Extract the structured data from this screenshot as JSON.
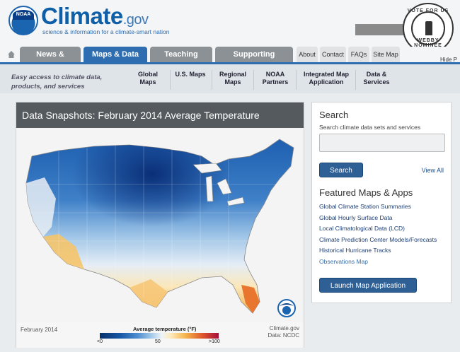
{
  "brand": {
    "logo_text": "NOAA",
    "name": "Climate",
    "tld": ".gov",
    "tagline": "science & information for a climate-smart nation"
  },
  "badge": {
    "top": "VOTE FOR US",
    "bottom": "WEBBY NOMINEE"
  },
  "nav": {
    "tabs": [
      "News & Features",
      "Maps & Data",
      "Teaching Climate",
      "Supporting Decisions"
    ],
    "active_tab": "Maps & Data",
    "utility": [
      "About",
      "Contact",
      "FAQs",
      "Site Map"
    ],
    "hide_label": "Hide P"
  },
  "subnav": {
    "lead": "Easy access to climate data, products, and services",
    "items": [
      "Global Maps",
      "U.S. Maps",
      "Regional Maps",
      "NOAA Partners",
      "Integrated Map Application",
      "Data & Services"
    ]
  },
  "snapshot": {
    "title": "Data Snapshots: February 2014 Average Temperature",
    "date": "February 2014",
    "legend_title": "Average temperature (°F)",
    "ticks": [
      "<0",
      "50",
      ">100"
    ],
    "credit_site": "Climate.gov",
    "credit_data": "Data: NCDC"
  },
  "sidebar": {
    "search_heading": "Search",
    "search_hint": "Search climate data sets and services",
    "search_button": "Search",
    "view_all": "View All",
    "featured_heading": "Featured Maps & Apps",
    "links": [
      "Global Climate Station Summaries",
      "Global Hourly Surface Data",
      "Local Climatological Data (LCD)",
      "Climate Prediction Center Models/Forecasts",
      "Historical Hurricane Tracks",
      "Observations Map"
    ],
    "launch_button": "Launch Map Application"
  },
  "colors": {
    "brand_blue": "#2d6db0",
    "tab_gray": "#8c9196",
    "button_blue": "#2e5f95"
  }
}
